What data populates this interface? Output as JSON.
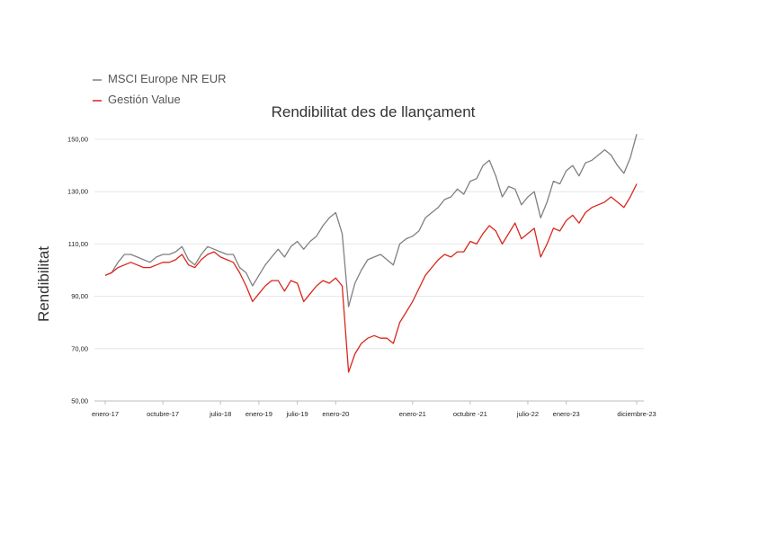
{
  "chart_data": {
    "type": "line",
    "title": "Rendibilitat des de llançament",
    "ylabel": "Rendibilitat",
    "xlabel": "",
    "ylim": [
      50,
      150
    ],
    "yticks": [
      "50,00",
      "70,00",
      "90,00",
      "110,00",
      "130,00",
      "150,00"
    ],
    "ytick_values": [
      50,
      70,
      90,
      110,
      130,
      150
    ],
    "xticks": [
      "enero-17",
      "octubre-17",
      "julio-18",
      "enero-19",
      "julio-19",
      "enero-20",
      "enero-21",
      "octubre -21",
      "julio-22",
      "enero-23",
      "diciembre-23"
    ],
    "xtick_dates": [
      "2017-01",
      "2017-10",
      "2018-07",
      "2019-01",
      "2019-07",
      "2020-01",
      "2021-01",
      "2021-10",
      "2022-07",
      "2023-01",
      "2023-12"
    ],
    "x": [
      "2017-01",
      "2017-02",
      "2017-03",
      "2017-04",
      "2017-05",
      "2017-06",
      "2017-07",
      "2017-08",
      "2017-09",
      "2017-10",
      "2017-11",
      "2017-12",
      "2018-01",
      "2018-02",
      "2018-03",
      "2018-04",
      "2018-05",
      "2018-06",
      "2018-07",
      "2018-08",
      "2018-09",
      "2018-10",
      "2018-11",
      "2018-12",
      "2019-01",
      "2019-02",
      "2019-03",
      "2019-04",
      "2019-05",
      "2019-06",
      "2019-07",
      "2019-08",
      "2019-09",
      "2019-10",
      "2019-11",
      "2019-12",
      "2020-01",
      "2020-02",
      "2020-03",
      "2020-04",
      "2020-05",
      "2020-06",
      "2020-07",
      "2020-08",
      "2020-09",
      "2020-10",
      "2020-11",
      "2020-12",
      "2021-01",
      "2021-02",
      "2021-03",
      "2021-04",
      "2021-05",
      "2021-06",
      "2021-07",
      "2021-08",
      "2021-09",
      "2021-10",
      "2021-11",
      "2021-12",
      "2022-01",
      "2022-02",
      "2022-03",
      "2022-04",
      "2022-05",
      "2022-06",
      "2022-07",
      "2022-08",
      "2022-09",
      "2022-10",
      "2022-11",
      "2022-12",
      "2023-01",
      "2023-02",
      "2023-03",
      "2023-04",
      "2023-05",
      "2023-06",
      "2023-07",
      "2023-08",
      "2023-09",
      "2023-10",
      "2023-11",
      "2023-12"
    ],
    "series": [
      {
        "name": "MSCI Europe NR EUR",
        "color": "#808080",
        "values": [
          98,
          99,
          103,
          106,
          106,
          105,
          104,
          103,
          105,
          106,
          106,
          107,
          109,
          104,
          102,
          106,
          109,
          108,
          107,
          106,
          106,
          101,
          99,
          94,
          98,
          102,
          105,
          108,
          105,
          109,
          111,
          108,
          111,
          113,
          117,
          120,
          122,
          114,
          86,
          95,
          100,
          104,
          105,
          106,
          104,
          102,
          110,
          112,
          113,
          115,
          120,
          122,
          124,
          127,
          128,
          131,
          129,
          134,
          135,
          140,
          142,
          136,
          128,
          132,
          131,
          125,
          128,
          130,
          120,
          126,
          134,
          133,
          138,
          140,
          136,
          141,
          142,
          144,
          146,
          144,
          140,
          137,
          143,
          152
        ]
      },
      {
        "name": "Gestión Value",
        "color": "#d9261c",
        "values": [
          98,
          99,
          101,
          102,
          103,
          102,
          101,
          101,
          102,
          103,
          103,
          104,
          106,
          102,
          101,
          104,
          106,
          107,
          105,
          104,
          103,
          99,
          94,
          88,
          91,
          94,
          96,
          96,
          92,
          96,
          95,
          88,
          91,
          94,
          96,
          95,
          97,
          94,
          61,
          68,
          72,
          74,
          75,
          74,
          74,
          72,
          80,
          84,
          88,
          93,
          98,
          101,
          104,
          106,
          105,
          107,
          107,
          111,
          110,
          114,
          117,
          115,
          110,
          114,
          118,
          112,
          114,
          116,
          105,
          110,
          116,
          115,
          119,
          121,
          118,
          122,
          124,
          125,
          126,
          128,
          126,
          124,
          128,
          133
        ]
      }
    ],
    "grid": true,
    "legend": "top-left"
  }
}
